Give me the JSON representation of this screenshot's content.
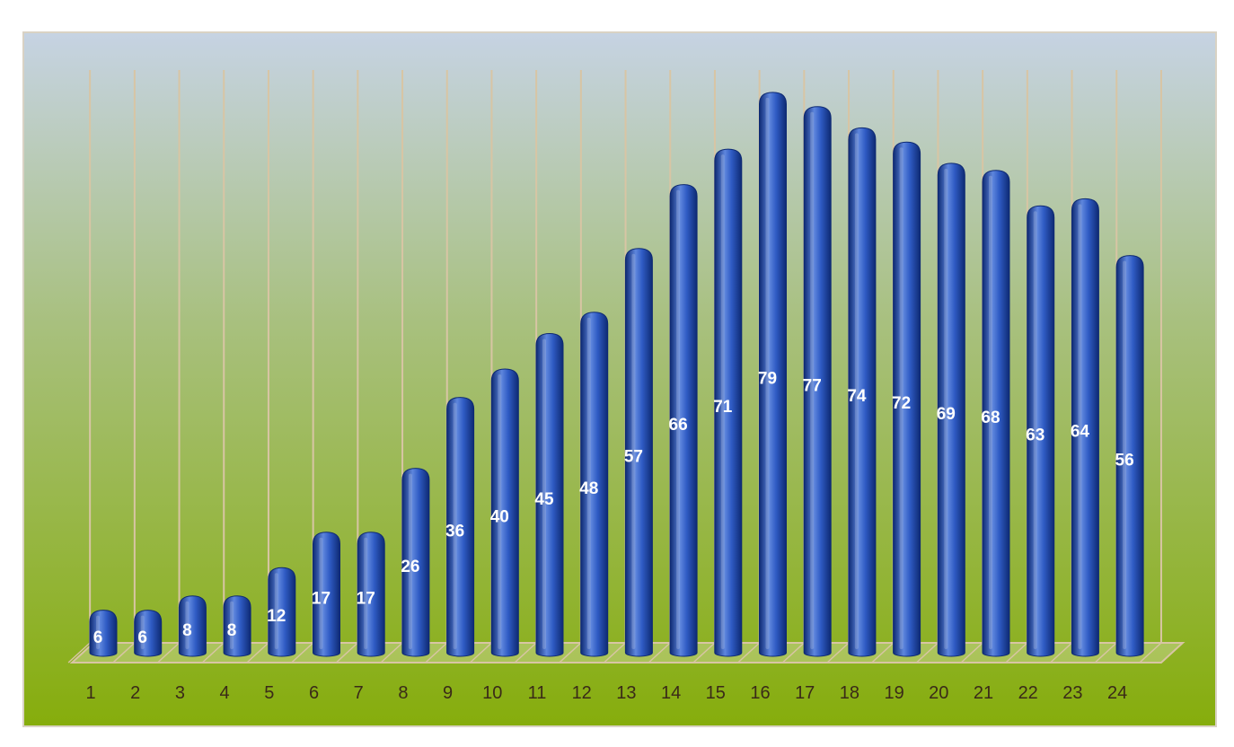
{
  "chart_data": {
    "type": "bar",
    "style": "3d-cylinder",
    "categories": [
      "1",
      "2",
      "3",
      "4",
      "5",
      "6",
      "7",
      "8",
      "9",
      "10",
      "11",
      "12",
      "13",
      "14",
      "15",
      "16",
      "17",
      "18",
      "19",
      "20",
      "21",
      "22",
      "23",
      "24"
    ],
    "series": [
      {
        "values": [
          6,
          6,
          8,
          8,
          12,
          17,
          17,
          26,
          36,
          40,
          45,
          48,
          57,
          66,
          71,
          79,
          77,
          74,
          72,
          69,
          68,
          63,
          64,
          56
        ]
      }
    ],
    "ylim": [
      0,
      80
    ],
    "grid": "vertical",
    "legend": "none",
    "data_labels": true,
    "title": "",
    "xlabel": "",
    "ylabel": ""
  },
  "colors": {
    "background_top": "#c6d3e3",
    "background_mid": "#a8c07e",
    "background_bottom": "#86ad0c",
    "bar_dark": "#0e2a73",
    "bar_mid": "#2f5bc4",
    "bar_light": "#5e86dd",
    "grid_line": "#d8c5a4",
    "label_text": "#ffffff",
    "axis_text": "#3a2a18"
  }
}
